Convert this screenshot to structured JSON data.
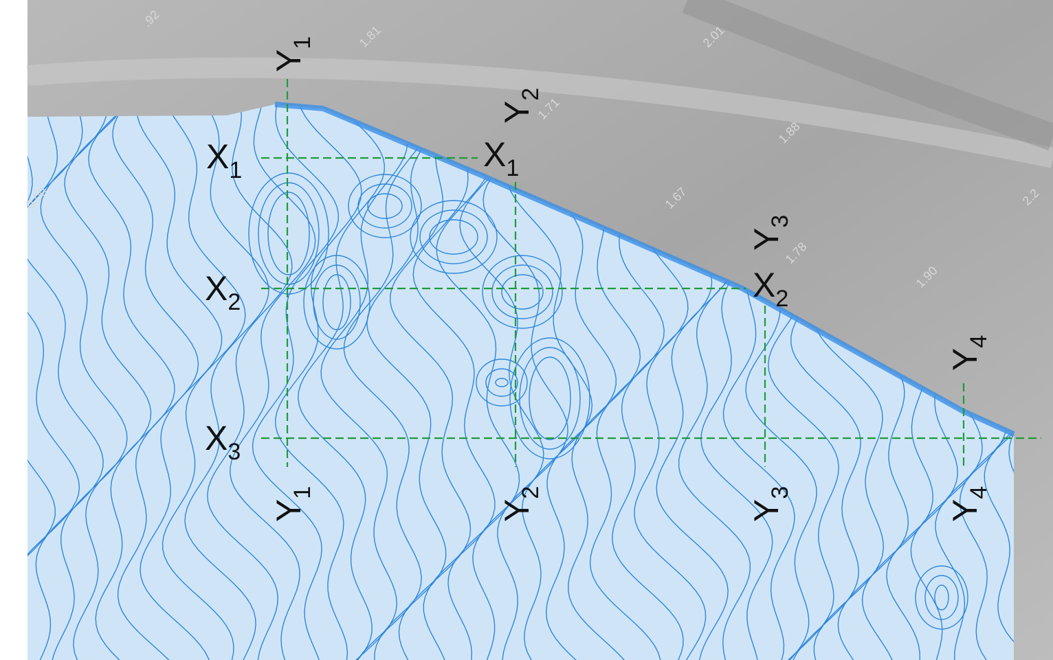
{
  "map": {
    "x_sections": [
      {
        "letter": "X",
        "index": "1"
      },
      {
        "letter": "X",
        "index": "2"
      },
      {
        "letter": "X",
        "index": "3"
      }
    ],
    "y_sections": [
      {
        "letter": "Y",
        "index": "1"
      },
      {
        "letter": "Y",
        "index": "2"
      },
      {
        "letter": "Y",
        "index": "3"
      },
      {
        "letter": "Y",
        "index": "4"
      }
    ],
    "contour_labels": [
      ".92",
      "1.81",
      "2.01",
      "1.71",
      "1.88",
      "1.67",
      "1.78",
      "1.90",
      "0.00",
      "2.2"
    ]
  }
}
